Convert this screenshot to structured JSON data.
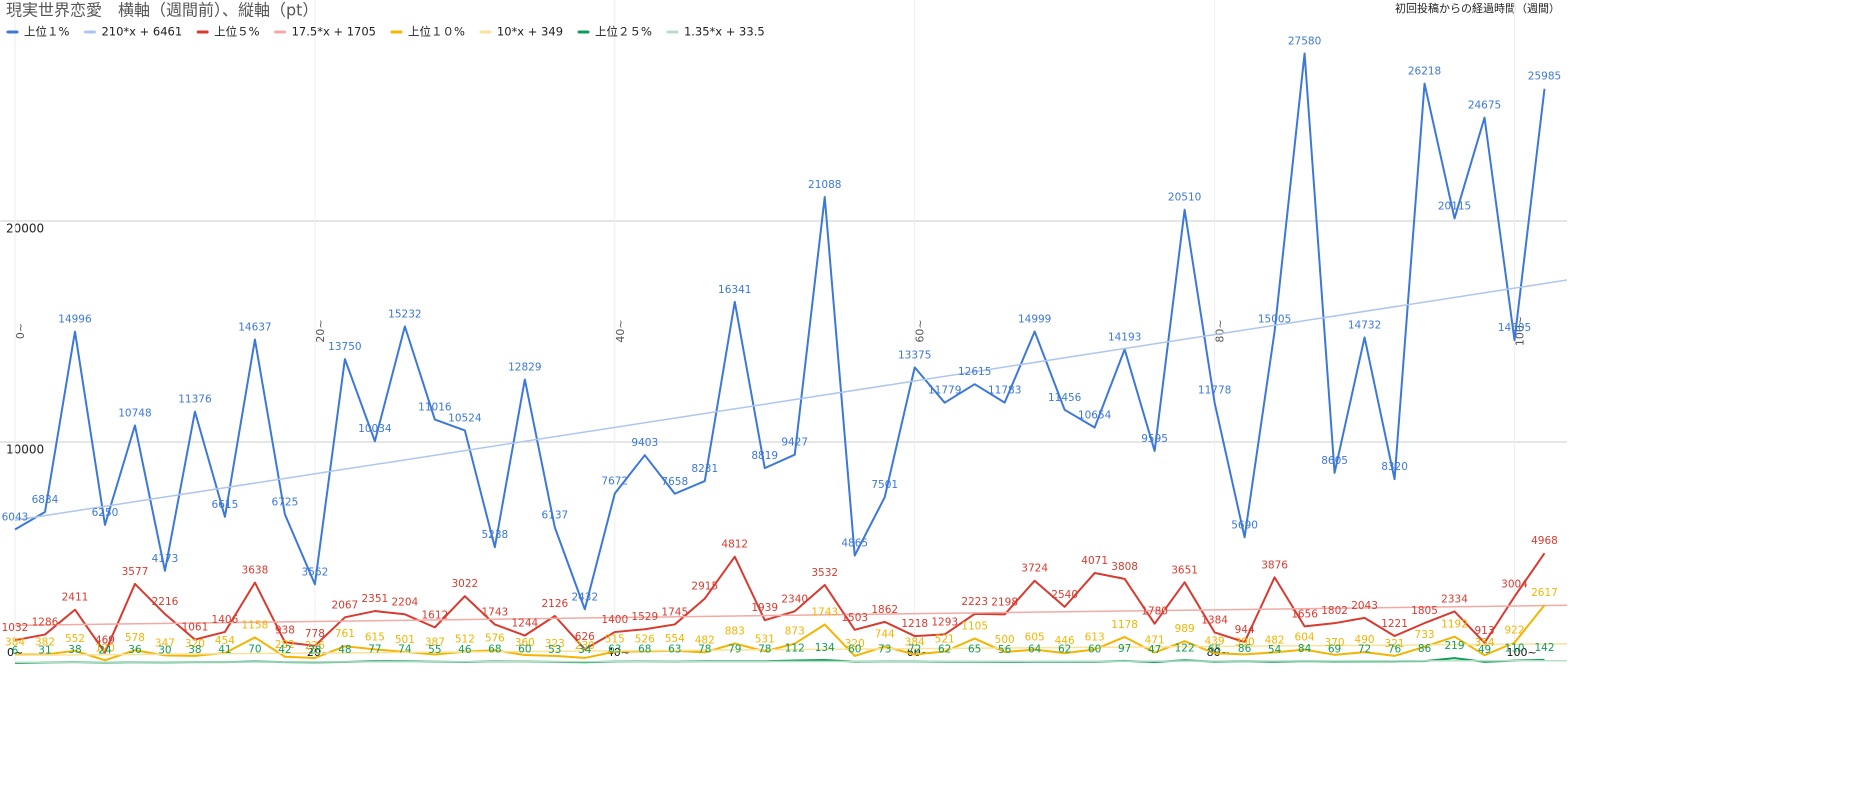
{
  "chart_data": {
    "type": "line",
    "title": "現実世界恋愛　横軸（週間前）、縦軸（pt）",
    "x_label": "初回投稿からの経過時間（週間）",
    "x": [
      0,
      2,
      4,
      6,
      8,
      10,
      12,
      14,
      16,
      18,
      20,
      22,
      24,
      26,
      28,
      30,
      32,
      34,
      36,
      38,
      40,
      42,
      44,
      46,
      48,
      50,
      52,
      54,
      56,
      58,
      60,
      62,
      64,
      66,
      68,
      70,
      72,
      74,
      76,
      78,
      80,
      82,
      84,
      86,
      88,
      90,
      92,
      94,
      96,
      98,
      100,
      102
    ],
    "xlim": [
      -1,
      103.5
    ],
    "xticks": [
      {
        "value": 0,
        "label": "0~"
      },
      {
        "value": 20,
        "label": "20~"
      },
      {
        "value": 40,
        "label": "40~"
      },
      {
        "value": 60,
        "label": "60~"
      },
      {
        "value": 80,
        "label": "80~"
      },
      {
        "value": 100,
        "label": "100~"
      }
    ],
    "ylim": [
      0,
      30000
    ],
    "yticks": [
      10000,
      20000
    ],
    "grid": true,
    "series": [
      {
        "name": "上位１%",
        "color": "#3c78d8",
        "values": [
          6043,
          6834,
          14996,
          6250,
          10748,
          4173,
          11376,
          6615,
          14637,
          6725,
          3562,
          13750,
          10034,
          15232,
          11016,
          10524,
          5238,
          12829,
          6137,
          2432,
          7672,
          9403,
          7658,
          8231,
          16341,
          8819,
          9427,
          21088,
          4865,
          7501,
          13375,
          11779,
          12615,
          11783,
          14999,
          11456,
          10654,
          14193,
          9595,
          20510,
          11778,
          5690,
          15005,
          27580,
          8605,
          14732,
          8320,
          26218,
          20115,
          24675,
          14605,
          25985
        ]
      },
      {
        "name": "210*x + 6461",
        "color": "#aec6ee",
        "trendline": true,
        "x": [
          0,
          103.5
        ],
        "values": [
          6461,
          17328.5
        ]
      },
      {
        "name": "上位５%",
        "color": "#d93a2f",
        "values": [
          1032,
          1286,
          2411,
          469,
          3577,
          2216,
          1061,
          1406,
          3638,
          938,
          778,
          2067,
          2351,
          2204,
          1612,
          3022,
          1743,
          1244,
          2126,
          626,
          1400,
          1529,
          1745,
          2915,
          4812,
          1939,
          2340,
          3532,
          1503,
          1862,
          1218,
          1293,
          2223,
          2198,
          3724,
          2540,
          4071,
          3808,
          1780,
          3651,
          1384,
          944,
          3876,
          1656,
          1802,
          2043,
          1221,
          1805,
          2334,
          913,
          3004,
          4968
        ]
      },
      {
        "name": "17.5*x + 1705",
        "color": "#f2aaa4",
        "trendline": true,
        "x": [
          0,
          103.5
        ],
        "values": [
          1705,
          2610.6
        ]
      },
      {
        "name": "上位１０%",
        "color": "#f4b400",
        "values": [
          384,
          382,
          552,
          120,
          578,
          347,
          320,
          454,
          1158,
          282,
          226,
          761,
          615,
          501,
          387,
          512,
          576,
          360,
          323,
          230,
          515,
          526,
          554,
          482,
          883,
          531,
          873,
          1743,
          320,
          744,
          384,
          521,
          1105,
          500,
          605,
          446,
          613,
          1178,
          471,
          989,
          439,
          390,
          482,
          604,
          370,
          490,
          321,
          733,
          1192,
          354,
          922,
          2617
        ]
      },
      {
        "name": "10*x + 349",
        "color": "#fbe29a",
        "trendline": true,
        "x": [
          0,
          103.5
        ],
        "values": [
          349,
          866.5
        ]
      },
      {
        "name": "上位２５%",
        "color": "#0f9d58",
        "values": [
          6,
          31,
          38,
          24,
          36,
          30,
          38,
          41,
          70,
          42,
          28,
          48,
          77,
          74,
          55,
          46,
          68,
          60,
          53,
          34,
          63,
          68,
          63,
          78,
          79,
          78,
          112,
          134,
          60,
          73,
          72,
          62,
          65,
          56,
          64,
          62,
          60,
          97,
          47,
          122,
          65,
          86,
          54,
          84,
          69,
          72,
          76,
          86,
          219,
          49,
          110,
          142
        ]
      },
      {
        "name": "1.35*x + 33.5",
        "color": "#b7dfc8",
        "trendline": true,
        "x": [
          0,
          103.5
        ],
        "values": [
          33.5,
          103.4
        ]
      }
    ]
  }
}
